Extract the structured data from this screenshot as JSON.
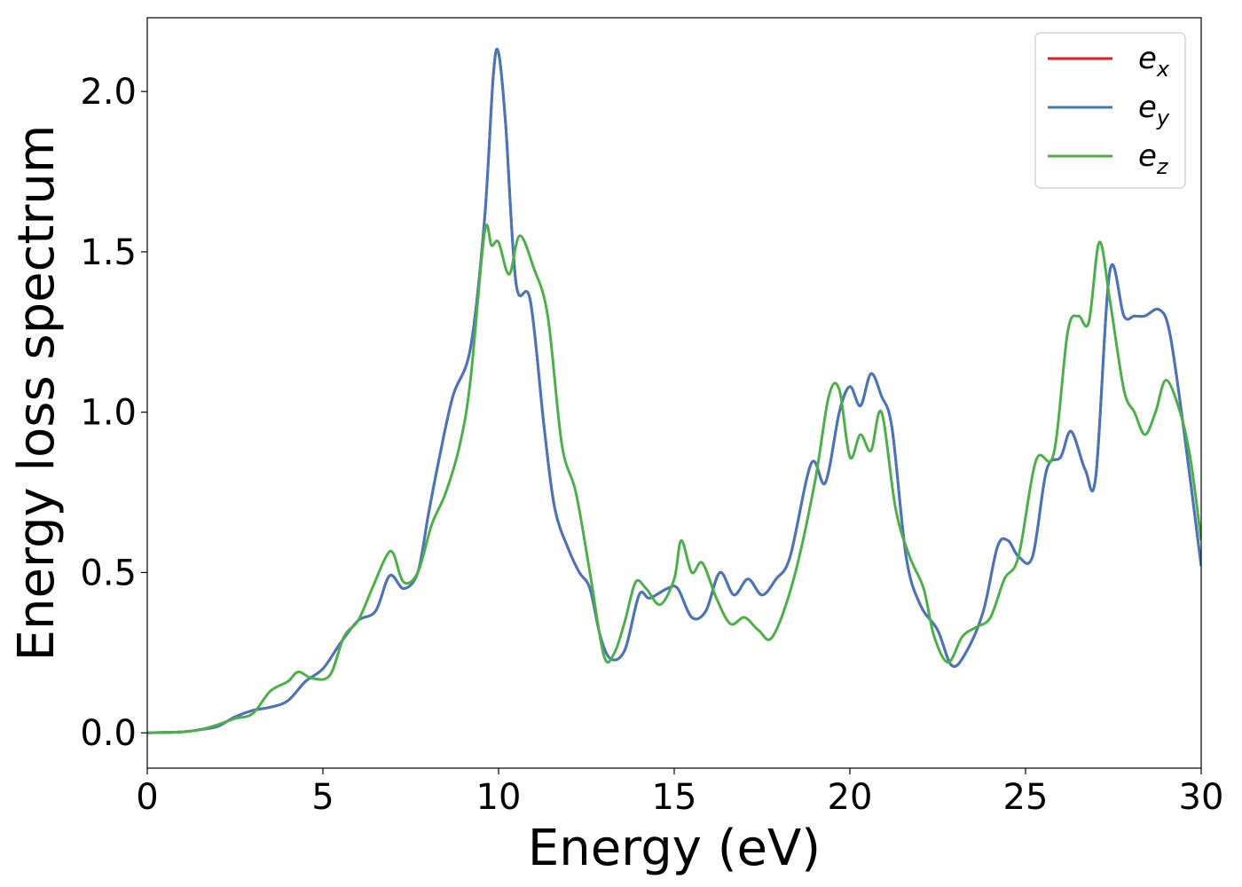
{
  "chart_data": {
    "type": "line",
    "title": "",
    "xlabel": "Energy (eV)",
    "ylabel": "Energy loss spectrum",
    "xlim": [
      0,
      30
    ],
    "ylim": [
      -0.11,
      2.23
    ],
    "xticks": [
      0,
      5,
      10,
      15,
      20,
      25,
      30
    ],
    "xtick_labels": [
      "0",
      "5",
      "10",
      "15",
      "20",
      "25",
      "30"
    ],
    "yticks": [
      0.0,
      0.5,
      1.0,
      1.5,
      2.0
    ],
    "ytick_labels": [
      "0.0",
      "0.5",
      "1.0",
      "1.5",
      "2.0"
    ],
    "grid": false,
    "legend_position": "top-right",
    "series": [
      {
        "name": "e_x",
        "legend_main": "e",
        "legend_sub": "x",
        "color": "#e41a1c",
        "x": [
          0,
          1,
          1.5,
          2,
          2.5,
          3,
          3.5,
          4,
          4.5,
          5,
          5.5,
          6,
          6.5,
          6.9,
          7.3,
          7.7,
          8,
          8.3,
          8.7,
          9.2,
          9.6,
          9.85,
          10,
          10.2,
          10.5,
          10.9,
          11.3,
          11.6,
          12,
          12.3,
          12.6,
          12.9,
          13.2,
          13.6,
          14,
          14.3,
          14.8,
          15.1,
          15.5,
          15.9,
          16.3,
          16.7,
          17.1,
          17.5,
          17.9,
          18.3,
          18.9,
          19.3,
          19.7,
          20,
          20.3,
          20.6,
          20.9,
          21.2,
          21.6,
          22,
          22.5,
          22.9,
          23.3,
          23.8,
          24.2,
          24.5,
          24.8,
          25.2,
          25.6,
          26,
          26.3,
          26.7,
          27,
          27.4,
          27.8,
          28.1,
          28.4,
          28.8,
          29.1,
          29.5,
          30
        ],
        "y": [
          0,
          0.003,
          0.01,
          0.02,
          0.05,
          0.07,
          0.08,
          0.1,
          0.16,
          0.2,
          0.28,
          0.35,
          0.38,
          0.49,
          0.45,
          0.5,
          0.68,
          0.85,
          1.05,
          1.2,
          1.6,
          2.05,
          2.12,
          1.9,
          1.4,
          1.35,
          0.95,
          0.7,
          0.57,
          0.5,
          0.45,
          0.3,
          0.23,
          0.26,
          0.43,
          0.42,
          0.45,
          0.45,
          0.36,
          0.38,
          0.5,
          0.43,
          0.48,
          0.43,
          0.48,
          0.55,
          0.84,
          0.78,
          1.0,
          1.08,
          1.02,
          1.12,
          1.05,
          0.95,
          0.55,
          0.4,
          0.32,
          0.21,
          0.25,
          0.38,
          0.58,
          0.6,
          0.55,
          0.55,
          0.82,
          0.86,
          0.94,
          0.82,
          0.8,
          1.44,
          1.3,
          1.3,
          1.3,
          1.32,
          1.25,
          0.95,
          0.52
        ]
      },
      {
        "name": "e_y",
        "legend_main": "e",
        "legend_sub": "y",
        "color": "#4477bb",
        "x": [
          0,
          1,
          1.5,
          2,
          2.5,
          3,
          3.5,
          4,
          4.5,
          5,
          5.5,
          6,
          6.5,
          6.9,
          7.3,
          7.7,
          8,
          8.3,
          8.7,
          9.2,
          9.6,
          9.85,
          10,
          10.2,
          10.5,
          10.9,
          11.3,
          11.6,
          12,
          12.3,
          12.6,
          12.9,
          13.2,
          13.6,
          14,
          14.3,
          14.8,
          15.1,
          15.5,
          15.9,
          16.3,
          16.7,
          17.1,
          17.5,
          17.9,
          18.3,
          18.9,
          19.3,
          19.7,
          20,
          20.3,
          20.6,
          20.9,
          21.2,
          21.6,
          22,
          22.5,
          22.9,
          23.3,
          23.8,
          24.2,
          24.5,
          24.8,
          25.2,
          25.6,
          26,
          26.3,
          26.7,
          27,
          27.4,
          27.8,
          28.1,
          28.4,
          28.8,
          29.1,
          29.5,
          30
        ],
        "y": [
          0,
          0.003,
          0.01,
          0.02,
          0.05,
          0.07,
          0.08,
          0.1,
          0.16,
          0.2,
          0.28,
          0.35,
          0.38,
          0.49,
          0.45,
          0.5,
          0.68,
          0.85,
          1.05,
          1.2,
          1.6,
          2.05,
          2.12,
          1.9,
          1.4,
          1.35,
          0.95,
          0.7,
          0.57,
          0.5,
          0.45,
          0.3,
          0.23,
          0.26,
          0.43,
          0.42,
          0.45,
          0.45,
          0.36,
          0.38,
          0.5,
          0.43,
          0.48,
          0.43,
          0.48,
          0.55,
          0.84,
          0.78,
          1.0,
          1.08,
          1.02,
          1.12,
          1.05,
          0.95,
          0.55,
          0.4,
          0.32,
          0.21,
          0.25,
          0.38,
          0.58,
          0.6,
          0.55,
          0.55,
          0.82,
          0.86,
          0.94,
          0.82,
          0.8,
          1.44,
          1.3,
          1.3,
          1.3,
          1.32,
          1.25,
          0.95,
          0.52
        ]
      },
      {
        "name": "e_z",
        "legend_main": "e",
        "legend_sub": "z",
        "color": "#4daf4a",
        "x": [
          0,
          1,
          1.5,
          2,
          2.5,
          3,
          3.5,
          4,
          4.3,
          4.7,
          5.2,
          5.6,
          6,
          6.4,
          6.8,
          7,
          7.3,
          7.7,
          8.1,
          8.5,
          8.9,
          9.2,
          9.6,
          9.8,
          10,
          10.3,
          10.6,
          11,
          11.4,
          11.8,
          12.2,
          12.6,
          13,
          13.3,
          13.6,
          13.9,
          14.2,
          14.6,
          15,
          15.2,
          15.5,
          15.8,
          16.2,
          16.6,
          17,
          17.4,
          17.8,
          18.4,
          19,
          19.4,
          19.7,
          20,
          20.3,
          20.6,
          20.9,
          21.3,
          21.7,
          22.1,
          22.4,
          22.8,
          23.2,
          23.6,
          24,
          24.4,
          24.8,
          25.3,
          25.8,
          26.2,
          26.5,
          26.8,
          27.1,
          27.4,
          27.8,
          28.1,
          28.4,
          28.7,
          29,
          29.4,
          29.7,
          30
        ],
        "y": [
          0,
          0.003,
          0.01,
          0.025,
          0.045,
          0.06,
          0.13,
          0.16,
          0.19,
          0.17,
          0.18,
          0.3,
          0.35,
          0.45,
          0.55,
          0.56,
          0.47,
          0.5,
          0.65,
          0.75,
          0.9,
          1.1,
          1.56,
          1.52,
          1.53,
          1.43,
          1.55,
          1.45,
          1.3,
          0.9,
          0.75,
          0.5,
          0.24,
          0.25,
          0.35,
          0.47,
          0.45,
          0.4,
          0.48,
          0.6,
          0.5,
          0.53,
          0.42,
          0.34,
          0.36,
          0.32,
          0.3,
          0.48,
          0.78,
          1.05,
          1.07,
          0.86,
          0.93,
          0.88,
          1.0,
          0.7,
          0.55,
          0.45,
          0.3,
          0.22,
          0.3,
          0.33,
          0.36,
          0.48,
          0.55,
          0.85,
          0.87,
          1.25,
          1.3,
          1.28,
          1.53,
          1.35,
          1.07,
          1.0,
          0.93,
          1.0,
          1.1,
          1.0,
          0.85,
          0.6
        ]
      }
    ]
  }
}
